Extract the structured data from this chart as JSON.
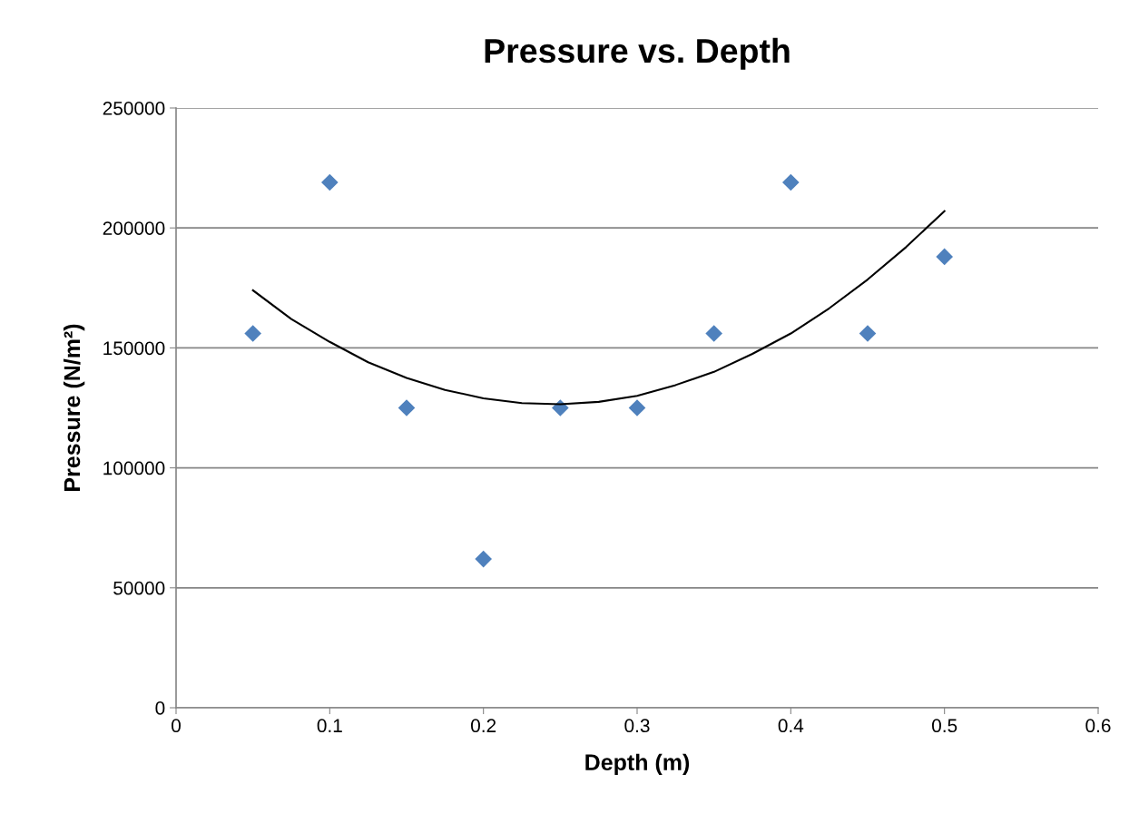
{
  "chart_data": {
    "type": "scatter",
    "title": "Pressure vs. Depth",
    "xlabel": "Depth (m)",
    "ylabel": "Pressure (N/m²)",
    "x": [
      0.05,
      0.1,
      0.15,
      0.2,
      0.25,
      0.3,
      0.35,
      0.4,
      0.45,
      0.5
    ],
    "series": [
      {
        "color": "#4f81bd",
        "marker": "diamond",
        "values": [
          156000,
          219000,
          125000,
          62000,
          125000,
          125000,
          156000,
          219000,
          156000,
          188000
        ]
      },
      {
        "type": "line",
        "color": "#000000",
        "marker": "none",
        "line_style": "solid",
        "x": [
          0.05,
          0.075,
          0.1,
          0.125,
          0.15,
          0.175,
          0.2,
          0.225,
          0.25,
          0.275,
          0.3,
          0.325,
          0.35,
          0.375,
          0.4,
          0.425,
          0.45,
          0.475,
          0.5
        ],
        "values": [
          174000,
          162000,
          152500,
          144000,
          137500,
          132500,
          129000,
          127000,
          126500,
          127500,
          130000,
          134500,
          140000,
          147500,
          156000,
          166500,
          178500,
          192000,
          207000
        ]
      }
    ],
    "xlim": [
      0,
      0.6
    ],
    "xticks": [
      0,
      0.1,
      0.2,
      0.3,
      0.4,
      0.5,
      0.6
    ],
    "ylim": [
      0,
      250000
    ],
    "yticks": [
      0,
      50000,
      100000,
      150000,
      200000,
      250000
    ],
    "grid": "y"
  }
}
